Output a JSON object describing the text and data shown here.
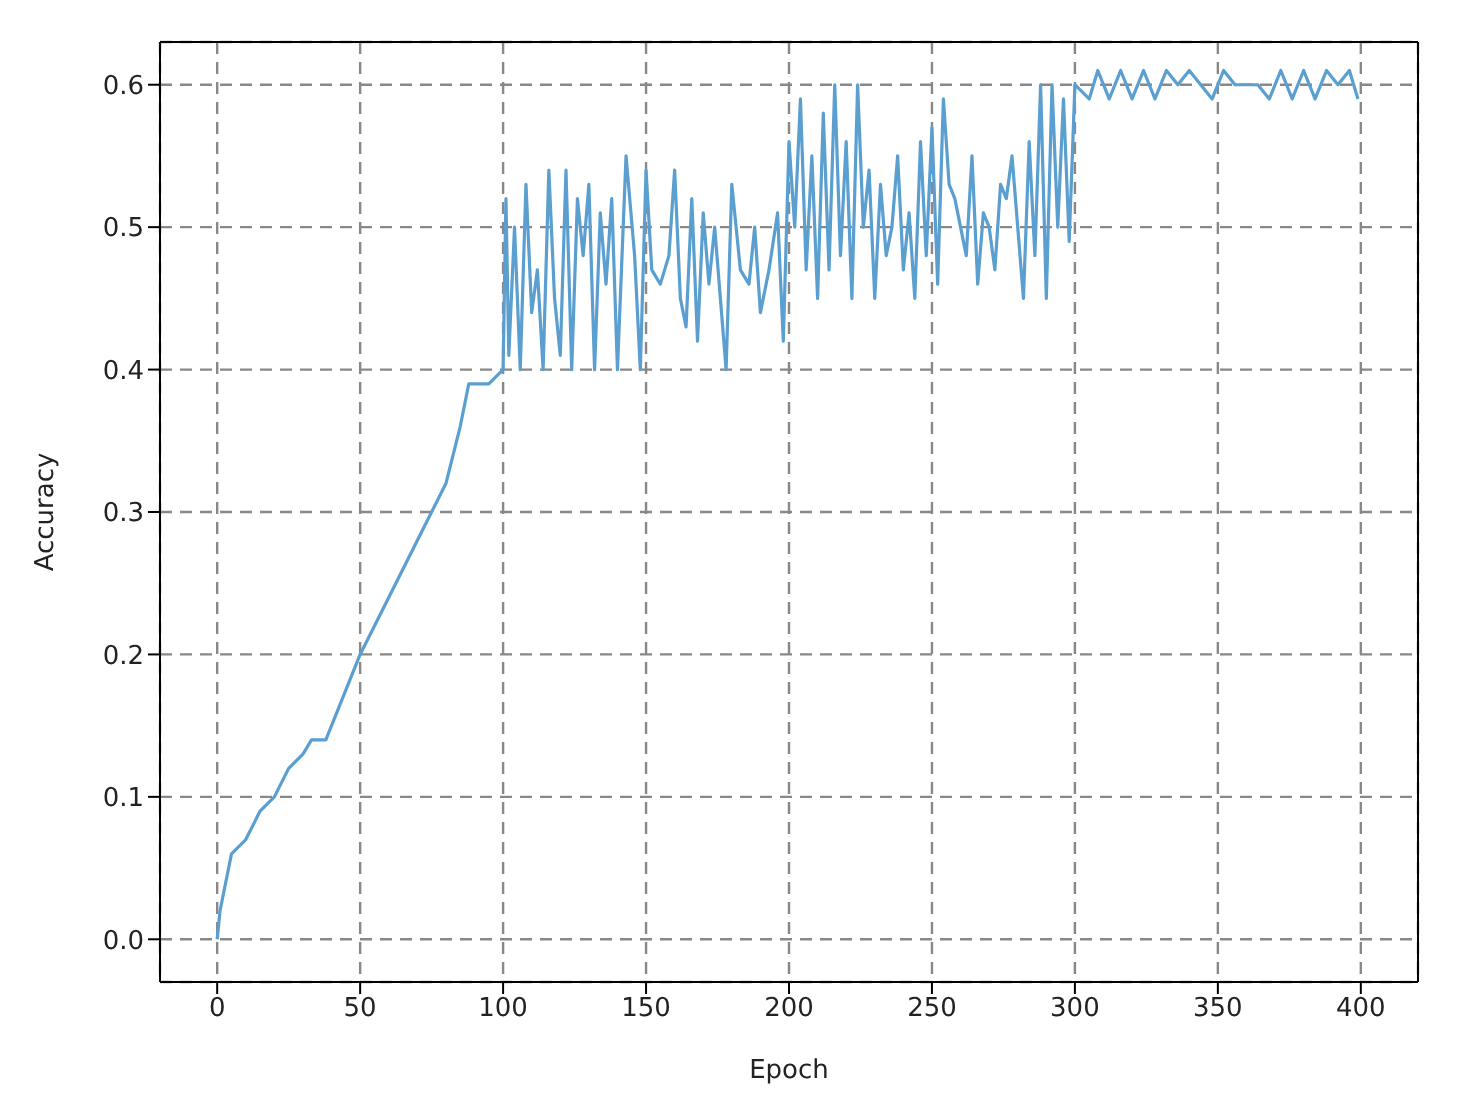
{
  "chart_data": {
    "type": "line",
    "xlabel": "Epoch",
    "ylabel": "Accuracy",
    "xlim": [
      -20,
      420
    ],
    "xticks": [
      0,
      50,
      100,
      150,
      200,
      250,
      300,
      350,
      400
    ],
    "ylim": [
      -0.03,
      0.63
    ],
    "yticks": [
      {
        "value": 0,
        "label": "0.0"
      },
      {
        "value": 0.1,
        "label": "0.1"
      },
      {
        "value": 0.2,
        "label": "0.2"
      },
      {
        "value": 0.3,
        "label": "0.3"
      },
      {
        "value": 0.4,
        "label": "0.4"
      },
      {
        "value": 0.5,
        "label": "0.5"
      },
      {
        "value": 0.6,
        "label": "0.6"
      }
    ],
    "grid": true,
    "line_style": "solid",
    "x": [
      0,
      1,
      3,
      5,
      10,
      15,
      20,
      25,
      30,
      33,
      38,
      42,
      46,
      50,
      55,
      60,
      65,
      70,
      75,
      80,
      85,
      88,
      95,
      100,
      101,
      102,
      104,
      106,
      108,
      110,
      112,
      114,
      116,
      118,
      120,
      122,
      124,
      126,
      128,
      130,
      132,
      134,
      136,
      138,
      140,
      143,
      146,
      148,
      150,
      152,
      155,
      158,
      160,
      162,
      164,
      166,
      168,
      170,
      172,
      174,
      176,
      178,
      180,
      183,
      186,
      188,
      190,
      193,
      196,
      198,
      200,
      202,
      204,
      206,
      208,
      210,
      212,
      214,
      216,
      218,
      220,
      222,
      224,
      226,
      228,
      230,
      232,
      234,
      236,
      238,
      240,
      242,
      244,
      246,
      248,
      250,
      252,
      254,
      256,
      258,
      260,
      262,
      264,
      266,
      268,
      270,
      272,
      274,
      276,
      278,
      280,
      282,
      284,
      286,
      288,
      290,
      292,
      294,
      296,
      298,
      300,
      305,
      308,
      312,
      316,
      320,
      324,
      328,
      332,
      336,
      340,
      344,
      348,
      352,
      356,
      360,
      364,
      368,
      372,
      376,
      380,
      384,
      388,
      392,
      396,
      399
    ],
    "series": [
      {
        "color": "#5b9fd0",
        "values": [
          0,
          0.02,
          0.04,
          0.06,
          0.07,
          0.09,
          0.1,
          0.12,
          0.13,
          0.14,
          0.14,
          0.16,
          0.18,
          0.2,
          0.22,
          0.24,
          0.26,
          0.28,
          0.3,
          0.32,
          0.36,
          0.39,
          0.39,
          0.4,
          0.52,
          0.41,
          0.5,
          0.4,
          0.53,
          0.44,
          0.47,
          0.4,
          0.54,
          0.45,
          0.41,
          0.54,
          0.4,
          0.52,
          0.48,
          0.53,
          0.4,
          0.51,
          0.46,
          0.52,
          0.4,
          0.55,
          0.48,
          0.4,
          0.54,
          0.47,
          0.46,
          0.48,
          0.54,
          0.45,
          0.43,
          0.52,
          0.42,
          0.51,
          0.46,
          0.5,
          0.45,
          0.4,
          0.53,
          0.47,
          0.46,
          0.5,
          0.44,
          0.47,
          0.51,
          0.42,
          0.56,
          0.5,
          0.59,
          0.47,
          0.55,
          0.45,
          0.58,
          0.47,
          0.6,
          0.48,
          0.56,
          0.45,
          0.6,
          0.5,
          0.54,
          0.45,
          0.53,
          0.48,
          0.5,
          0.55,
          0.47,
          0.51,
          0.45,
          0.56,
          0.48,
          0.57,
          0.46,
          0.59,
          0.53,
          0.52,
          0.5,
          0.48,
          0.55,
          0.46,
          0.51,
          0.5,
          0.47,
          0.53,
          0.52,
          0.55,
          0.5,
          0.45,
          0.56,
          0.48,
          0.6,
          0.45,
          0.6,
          0.5,
          0.59,
          0.49,
          0.6,
          0.59,
          0.61,
          0.59,
          0.61,
          0.59,
          0.61,
          0.59,
          0.61,
          0.6,
          0.61,
          0.6,
          0.59,
          0.61,
          0.6,
          0.6,
          0.6,
          0.59,
          0.61,
          0.59,
          0.61,
          0.59,
          0.61,
          0.6,
          0.61,
          0.59
        ]
      }
    ]
  }
}
